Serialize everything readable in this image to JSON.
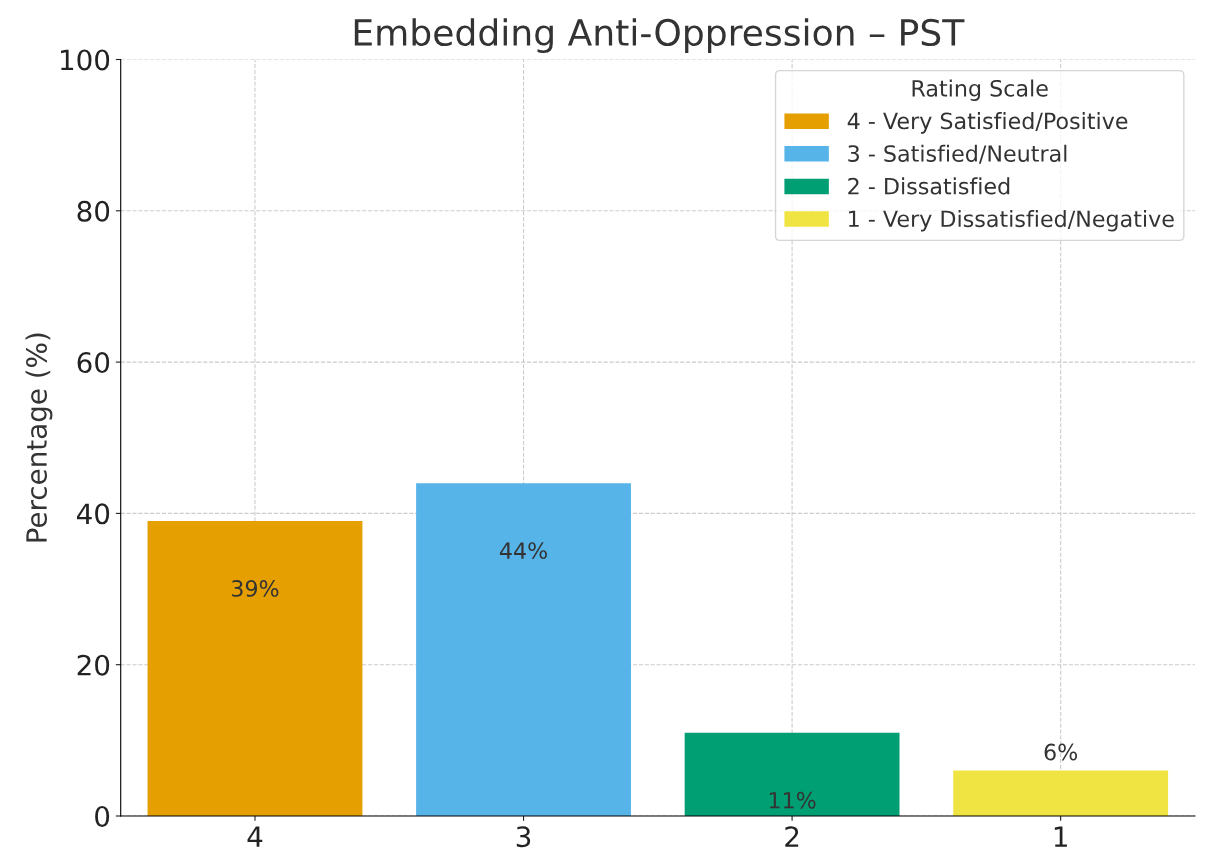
{
  "chart_data": {
    "type": "bar",
    "title": "Embedding Anti-Oppression – PST",
    "ylabel": "Percentage (%)",
    "legend_title": "Rating Scale",
    "categories": [
      "4",
      "3",
      "2",
      "1"
    ],
    "series": [
      {
        "name": "4 - Very Satisfied/Positive",
        "color": "#e69f00",
        "values": [
          39,
          null,
          null,
          null
        ],
        "value_labels": [
          "39%",
          null,
          null,
          null
        ]
      },
      {
        "name": "3 - Satisfied/Neutral",
        "color": "#56b4e9",
        "values": [
          null,
          44,
          null,
          null
        ],
        "value_labels": [
          null,
          "44%",
          null,
          null
        ]
      },
      {
        "name": "2 - Dissatisfied",
        "color": "#009e73",
        "values": [
          null,
          null,
          11,
          null
        ],
        "value_labels": [
          null,
          null,
          "11%",
          null
        ]
      },
      {
        "name": "1 - Very Dissatisfied/Negative",
        "color": "#f0e442",
        "values": [
          null,
          null,
          null,
          6
        ],
        "value_labels": [
          null,
          null,
          null,
          "6%"
        ]
      }
    ],
    "ylim": [
      0,
      100
    ],
    "yticks": [
      0,
      20,
      40,
      60,
      80,
      100
    ],
    "grid": true,
    "legend": "top right"
  }
}
